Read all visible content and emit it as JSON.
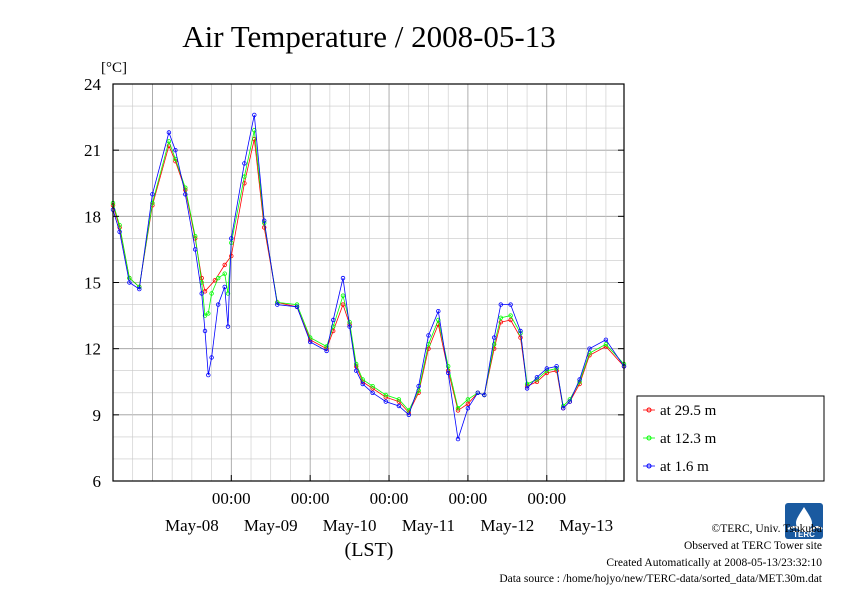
{
  "chart_data": {
    "type": "line",
    "title": "Air Temperature / 2008-05-13",
    "ylabel": "[°C]",
    "xlabel": "(LST)",
    "ylim": [
      6,
      24
    ],
    "yticks": [
      6,
      9,
      12,
      15,
      18,
      21,
      24
    ],
    "xlim": [
      "2008-05-07T12:00",
      "2008-05-13T23:30"
    ],
    "xticks": [
      "2008-05-09T00:00",
      "2008-05-10T00:00",
      "2008-05-11T00:00",
      "2008-05-12T00:00",
      "2008-05-13T00:00"
    ],
    "xtick_label": "00:00",
    "day_labels": [
      "May-08",
      "May-09",
      "May-10",
      "May-11",
      "May-12",
      "May-13"
    ],
    "grid": true,
    "legend_placement": "right",
    "series": [
      {
        "name": "at 29.5 m",
        "color": "#ff0000",
        "x": [
          "2008-05-07T12:00",
          "2008-05-07T14:00",
          "2008-05-07T17:00",
          "2008-05-07T20:00",
          "2008-05-08T00:00",
          "2008-05-08T05:00",
          "2008-05-08T07:00",
          "2008-05-08T10:00",
          "2008-05-08T13:00",
          "2008-05-08T15:00",
          "2008-05-08T16:00",
          "2008-05-08T19:00",
          "2008-05-08T22:00",
          "2008-05-09T00:00",
          "2008-05-09T04:00",
          "2008-05-09T07:00",
          "2008-05-09T10:00",
          "2008-05-09T14:00",
          "2008-05-09T20:00",
          "2008-05-10T00:00",
          "2008-05-10T05:00",
          "2008-05-10T07:00",
          "2008-05-10T10:00",
          "2008-05-10T12:00",
          "2008-05-10T14:00",
          "2008-05-10T16:00",
          "2008-05-10T19:00",
          "2008-05-10T23:00",
          "2008-05-11T03:00",
          "2008-05-11T06:00",
          "2008-05-11T09:00",
          "2008-05-11T12:00",
          "2008-05-11T15:00",
          "2008-05-11T18:00",
          "2008-05-11T21:00",
          "2008-05-12T00:00",
          "2008-05-12T03:00",
          "2008-05-12T05:00",
          "2008-05-12T08:00",
          "2008-05-12T10:00",
          "2008-05-12T13:00",
          "2008-05-12T16:00",
          "2008-05-12T18:00",
          "2008-05-12T21:00",
          "2008-05-13T00:00",
          "2008-05-13T03:00",
          "2008-05-13T05:00",
          "2008-05-13T07:00",
          "2008-05-13T10:00",
          "2008-05-13T13:00",
          "2008-05-13T18:00",
          "2008-05-13T23:30"
        ],
        "y": [
          18.5,
          17.5,
          15.2,
          14.8,
          18.5,
          21.2,
          20.5,
          19.2,
          17.0,
          15.2,
          14.6,
          15.1,
          15.8,
          16.2,
          19.5,
          21.5,
          17.5,
          14.1,
          13.9,
          12.4,
          12.0,
          12.8,
          14.0,
          13.1,
          11.2,
          10.5,
          10.2,
          9.8,
          9.6,
          9.1,
          10.0,
          12.0,
          13.1,
          11.0,
          9.2,
          9.5,
          10.0,
          9.9,
          12.0,
          13.2,
          13.3,
          12.5,
          10.3,
          10.5,
          10.9,
          11.0,
          9.3,
          9.6,
          10.4,
          11.7,
          12.1,
          11.2
        ]
      },
      {
        "name": "at 12.3 m",
        "color": "#00ff00",
        "x": [
          "2008-05-07T12:00",
          "2008-05-07T14:00",
          "2008-05-07T17:00",
          "2008-05-07T20:00",
          "2008-05-08T00:00",
          "2008-05-08T05:00",
          "2008-05-08T07:00",
          "2008-05-08T10:00",
          "2008-05-08T13:00",
          "2008-05-08T15:00",
          "2008-05-08T16:00",
          "2008-05-08T17:00",
          "2008-05-08T18:00",
          "2008-05-08T20:00",
          "2008-05-08T22:00",
          "2008-05-08T23:00",
          "2008-05-09T00:00",
          "2008-05-09T04:00",
          "2008-05-09T07:00",
          "2008-05-09T10:00",
          "2008-05-09T14:00",
          "2008-05-09T20:00",
          "2008-05-10T00:00",
          "2008-05-10T05:00",
          "2008-05-10T07:00",
          "2008-05-10T10:00",
          "2008-05-10T12:00",
          "2008-05-10T14:00",
          "2008-05-10T16:00",
          "2008-05-10T19:00",
          "2008-05-10T23:00",
          "2008-05-11T03:00",
          "2008-05-11T06:00",
          "2008-05-11T09:00",
          "2008-05-11T12:00",
          "2008-05-11T15:00",
          "2008-05-11T18:00",
          "2008-05-11T21:00",
          "2008-05-12T00:00",
          "2008-05-12T03:00",
          "2008-05-12T05:00",
          "2008-05-12T08:00",
          "2008-05-12T10:00",
          "2008-05-12T13:00",
          "2008-05-12T16:00",
          "2008-05-12T18:00",
          "2008-05-12T21:00",
          "2008-05-13T00:00",
          "2008-05-13T03:00",
          "2008-05-13T05:00",
          "2008-05-13T07:00",
          "2008-05-13T10:00",
          "2008-05-13T13:00",
          "2008-05-13T18:00",
          "2008-05-13T23:30"
        ],
        "y": [
          18.6,
          17.6,
          15.2,
          14.8,
          18.6,
          21.4,
          20.6,
          19.3,
          17.1,
          15.0,
          13.5,
          13.6,
          14.5,
          15.2,
          15.4,
          14.5,
          16.8,
          19.8,
          21.9,
          17.7,
          14.1,
          14.0,
          12.5,
          12.1,
          13.0,
          14.4,
          13.2,
          11.3,
          10.6,
          10.3,
          9.9,
          9.7,
          9.2,
          10.1,
          12.2,
          13.3,
          11.2,
          9.3,
          9.7,
          10.0,
          9.9,
          12.2,
          13.4,
          13.5,
          12.7,
          10.4,
          10.6,
          11.0,
          11.1,
          9.4,
          9.7,
          10.5,
          11.8,
          12.2,
          11.3
        ]
      },
      {
        "name": "at 1.6 m",
        "color": "#0000ff",
        "x": [
          "2008-05-07T12:00",
          "2008-05-07T14:00",
          "2008-05-07T17:00",
          "2008-05-07T20:00",
          "2008-05-08T00:00",
          "2008-05-08T05:00",
          "2008-05-08T07:00",
          "2008-05-08T10:00",
          "2008-05-08T13:00",
          "2008-05-08T15:00",
          "2008-05-08T16:00",
          "2008-05-08T17:00",
          "2008-05-08T18:00",
          "2008-05-08T20:00",
          "2008-05-08T22:00",
          "2008-05-08T23:00",
          "2008-05-09T00:00",
          "2008-05-09T04:00",
          "2008-05-09T07:00",
          "2008-05-09T10:00",
          "2008-05-09T14:00",
          "2008-05-09T20:00",
          "2008-05-10T00:00",
          "2008-05-10T05:00",
          "2008-05-10T07:00",
          "2008-05-10T10:00",
          "2008-05-10T12:00",
          "2008-05-10T14:00",
          "2008-05-10T16:00",
          "2008-05-10T19:00",
          "2008-05-10T23:00",
          "2008-05-11T03:00",
          "2008-05-11T06:00",
          "2008-05-11T09:00",
          "2008-05-11T12:00",
          "2008-05-11T15:00",
          "2008-05-11T18:00",
          "2008-05-11T21:00",
          "2008-05-12T00:00",
          "2008-05-12T03:00",
          "2008-05-12T05:00",
          "2008-05-12T08:00",
          "2008-05-12T10:00",
          "2008-05-12T13:00",
          "2008-05-12T16:00",
          "2008-05-12T18:00",
          "2008-05-12T21:00",
          "2008-05-13T00:00",
          "2008-05-13T03:00",
          "2008-05-13T05:00",
          "2008-05-13T07:00",
          "2008-05-13T10:00",
          "2008-05-13T13:00",
          "2008-05-13T18:00",
          "2008-05-13T23:30"
        ],
        "y": [
          18.3,
          17.3,
          15.0,
          14.7,
          19.0,
          21.8,
          21.0,
          19.0,
          16.5,
          14.5,
          12.8,
          10.8,
          11.6,
          14.0,
          14.8,
          13.0,
          17.0,
          20.4,
          22.6,
          17.8,
          14.0,
          13.9,
          12.3,
          11.9,
          13.3,
          15.2,
          13.0,
          11.0,
          10.4,
          10.0,
          9.6,
          9.4,
          9.0,
          10.3,
          12.6,
          13.7,
          10.9,
          7.9,
          9.3,
          10.0,
          9.9,
          12.5,
          14.0,
          14.0,
          12.8,
          10.2,
          10.7,
          11.1,
          11.2,
          9.3,
          9.6,
          10.6,
          12.0,
          12.4,
          11.2
        ]
      }
    ]
  },
  "credits": {
    "copyright": "©TERC, Univ. Tsukuba",
    "observed": "Observed at TERC Tower site",
    "created": "Created Automatically at 2008-05-13/23:32:10",
    "source": "Data source : /home/hojyo/new/TERC-data/sorted_data/MET.30m.dat"
  },
  "logo": {
    "text": "TERC",
    "color": "#1a5aa0"
  }
}
